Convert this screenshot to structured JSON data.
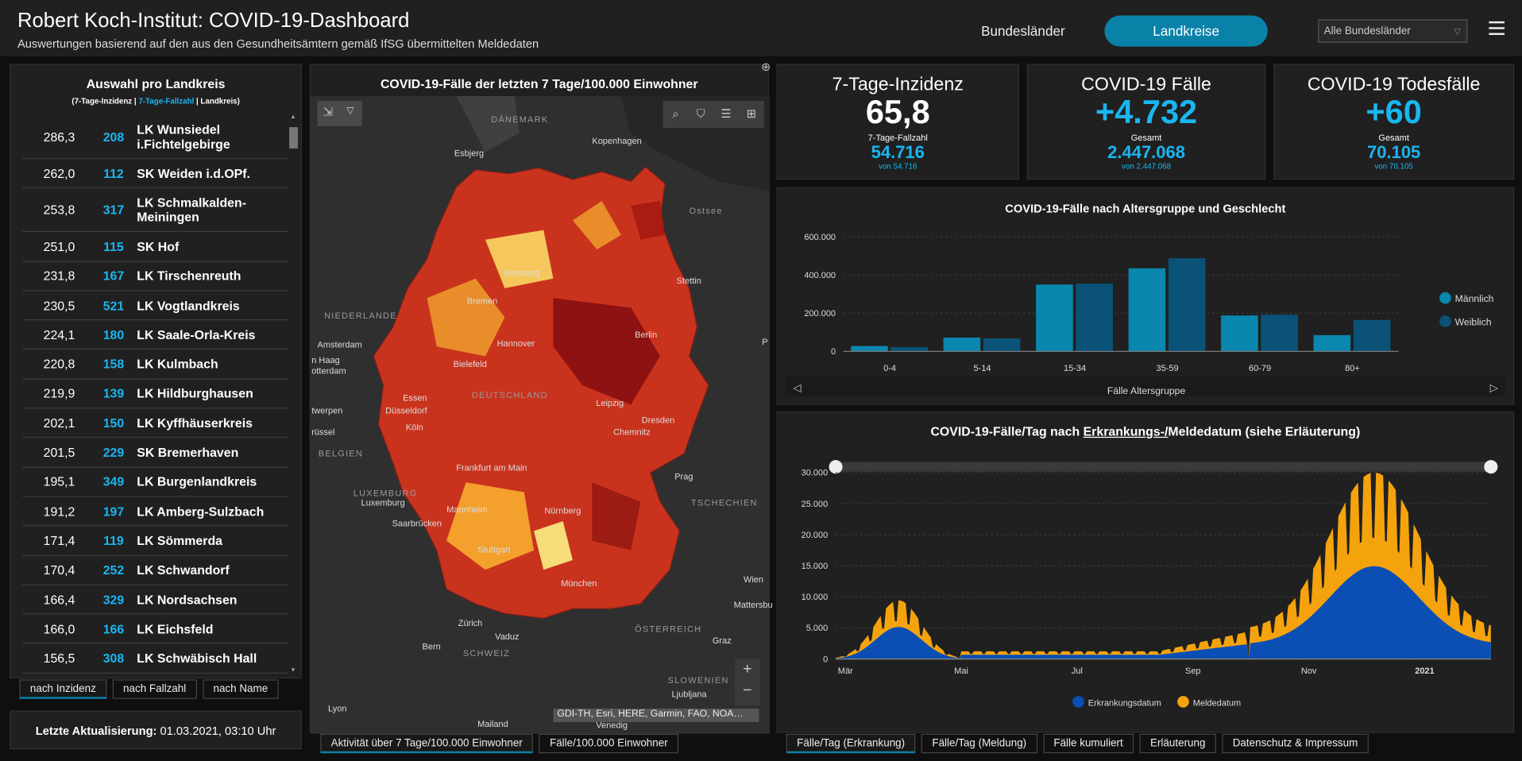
{
  "header": {
    "title": "Robert Koch-Institut: COVID-19-Dashboard",
    "subtitle": "Auswertungen basierend auf den aus den Gesundheitsämtern gemäß IfSG übermittelten Meldedaten",
    "tab_states": "Bundesländer",
    "tab_districts": "Landkreise",
    "dropdown": "Alle Bundesländer"
  },
  "left": {
    "title": "Auswahl pro Landkreis",
    "legend": {
      "a": "(7-Tage-Inzidenz",
      "sep1": " | ",
      "b": "7-Tage-Fallzahl",
      "sep2": " | ",
      "c": "Landkreis)"
    },
    "rows": [
      {
        "i": "286,3",
        "f": "208",
        "n": "LK Wunsiedel i.Fichtelgebirge"
      },
      {
        "i": "262,0",
        "f": "112",
        "n": "SK Weiden i.d.OPf."
      },
      {
        "i": "253,8",
        "f": "317",
        "n": "LK Schmalkalden-Meiningen"
      },
      {
        "i": "251,0",
        "f": "115",
        "n": "SK Hof"
      },
      {
        "i": "231,8",
        "f": "167",
        "n": "LK Tirschenreuth"
      },
      {
        "i": "230,5",
        "f": "521",
        "n": "LK Vogtlandkreis"
      },
      {
        "i": "224,1",
        "f": "180",
        "n": "LK Saale-Orla-Kreis"
      },
      {
        "i": "220,8",
        "f": "158",
        "n": "LK Kulmbach"
      },
      {
        "i": "219,9",
        "f": "139",
        "n": "LK Hildburghausen"
      },
      {
        "i": "202,1",
        "f": "150",
        "n": "LK Kyffhäuserkreis"
      },
      {
        "i": "201,5",
        "f": "229",
        "n": "SK Bremerhaven"
      },
      {
        "i": "195,1",
        "f": "349",
        "n": "LK Burgenlandkreis"
      },
      {
        "i": "191,2",
        "f": "197",
        "n": "LK Amberg-Sulzbach"
      },
      {
        "i": "171,4",
        "f": "119",
        "n": "LK Sömmerda"
      },
      {
        "i": "170,4",
        "f": "252",
        "n": "LK Schwandorf"
      },
      {
        "i": "166,4",
        "f": "329",
        "n": "LK Nordsachsen"
      },
      {
        "i": "166,0",
        "f": "166",
        "n": "LK Eichsfeld"
      },
      {
        "i": "156,5",
        "f": "308",
        "n": "LK Schwäbisch Hall"
      }
    ],
    "sort_buttons": [
      "nach Inzidenz",
      "nach Fallzahl",
      "nach Name"
    ],
    "update_label": "Letzte Aktualisierung:",
    "update_value": " 01.03.2021, 03:10 Uhr"
  },
  "map": {
    "title": "COVID-19-Fälle der letzten 7 Tage/100.000 Einwohner",
    "attribution": "GDI-TH, Esri, HERE, Garmin, FAO, NOA…",
    "labels": {
      "daenemark": "DÄNEMARK",
      "kopenhagen": "Kopenhagen",
      "esbjerg": "Esbjerg",
      "ostsee": "Ostsee",
      "niederlande": "NIEDERLANDE",
      "amsterdam": "Amsterdam",
      "denhaag": "n Haag",
      "rotterdam": "otterdam",
      "twerpen": "twerpen",
      "ruessel": "rüssel",
      "belgien": "BELGIEN",
      "luxemburgC": "LUXEMBURG",
      "luxemburg": "Luxemburg",
      "hamburg": "Hamburg",
      "bremen": "Bremen",
      "stettin": "Stettin",
      "berlin": "Berlin",
      "hannover": "Hannover",
      "bielefeld": "Bielefeld",
      "deutschland": "DEUTSCHLAND",
      "essen": "Essen",
      "duesseldorf": "Düsseldorf",
      "koeln": "Köln",
      "leipzig": "Leipzig",
      "dresden": "Dresden",
      "chemnitz": "Chemnitz",
      "prag": "Prag",
      "tschechien": "TSCHECHIEN",
      "frankfurt": "Frankfurt am Main",
      "mannheim": "Mannheim",
      "saarbruecken": "Saarbrücken",
      "nuernberg": "Nürnberg",
      "stuttgart": "Stuttgart",
      "muenchen": "München",
      "zuerich": "Zürich",
      "vaduz": "Vaduz",
      "bern": "Bern",
      "schweiz": "SCHWEIZ",
      "oesterreich": "ÖSTERREICH",
      "wien": "Wien",
      "mattersbu": "Mattersbu",
      "graz": "Graz",
      "slowenien": "SLOWENIEN",
      "ljubljana": "Ljubljana",
      "venedig": "Venedig",
      "mailand": "Mailand",
      "lyon": "Lyon",
      "p": "P"
    },
    "tabs": [
      "Aktivität über 7 Tage/100.000 Einwohner",
      "Fälle/100.000 Einwohner"
    ]
  },
  "indicators": [
    {
      "label": "7-Tage-Inzidenz",
      "value": "65,8",
      "sub_label": "7-Tage-Fallzahl",
      "sub_value": "54.716",
      "sub_detail": "von 54.716",
      "color": "#ffffff"
    },
    {
      "label": "COVID-19 Fälle",
      "value": "+4.732",
      "sub_label": "Gesamt",
      "sub_value": "2.447.068",
      "sub_detail": "von 2.447.068",
      "color": "#1ab6f0"
    },
    {
      "label": "COVID-19 Todesfälle",
      "value": "+60",
      "sub_label": "Gesamt",
      "sub_value": "70.105",
      "sub_detail": "von 70.105",
      "color": "#1ab6f0"
    }
  ],
  "age_chart": {
    "title": "COVID-19-Fälle nach Altersgruppe und Geschlecht",
    "xlabel": "Fälle Altersgruppe",
    "ylim": [
      0,
      600000
    ],
    "ticks": [
      "0",
      "200.000",
      "400.000",
      "600.000"
    ],
    "categories": [
      "0-4",
      "5-14",
      "15-34",
      "35-59",
      "60-79",
      "80+"
    ],
    "series": [
      {
        "name": "Männlich",
        "values": [
          28000,
          72000,
          350000,
          435000,
          188000,
          85000
        ],
        "color": "#0987ae"
      },
      {
        "name": "Weiblich",
        "values": [
          22000,
          68000,
          355000,
          488000,
          192000,
          165000
        ],
        "color": "#0a5277"
      }
    ]
  },
  "ep_chart": {
    "title_a": "COVID-19-Fälle/Tag nach ",
    "title_b": "Erkrankungs-/",
    "title_c": "Meldedatum (siehe Erläuterung)",
    "ticks": [
      "0",
      "5.000",
      "10.000",
      "15.000",
      "20.000",
      "25.000",
      "30.000"
    ],
    "xticks": [
      "Mär",
      "Mai",
      "Jul",
      "Sep",
      "Nov",
      "2021"
    ],
    "legend": [
      "Erkrankungsdatum",
      "Meldedatum"
    ],
    "colors": [
      "#0b4fb5",
      "#f5a30c"
    ]
  },
  "chart_data": [
    {
      "type": "bar",
      "title": "COVID-19-Fälle nach Altersgruppe und Geschlecht",
      "xlabel": "Fälle Altersgruppe",
      "categories": [
        "0-4",
        "5-14",
        "15-34",
        "35-59",
        "60-79",
        "80+"
      ],
      "series": [
        {
          "name": "Männlich",
          "values": [
            28000,
            72000,
            350000,
            435000,
            188000,
            85000
          ]
        },
        {
          "name": "Weiblich",
          "values": [
            22000,
            68000,
            355000,
            488000,
            192000,
            165000
          ]
        }
      ],
      "ylim": [
        0,
        600000
      ]
    },
    {
      "type": "area",
      "title": "COVID-19-Fälle/Tag nach Erkrankungs-/Meldedatum (siehe Erläuterung)",
      "x_range": [
        "Mär",
        "2021"
      ],
      "series": [
        {
          "name": "Erkrankungsdatum",
          "peak": 13500
        },
        {
          "name": "Meldedatum",
          "peak": 29000
        }
      ],
      "ylim": [
        0,
        30000
      ]
    }
  ],
  "bottom_tabs": [
    "Fälle/Tag (Erkrankung)",
    "Fälle/Tag (Meldung)",
    "Fälle kumuliert",
    "Erläuterung",
    "Datenschutz & Impressum"
  ]
}
